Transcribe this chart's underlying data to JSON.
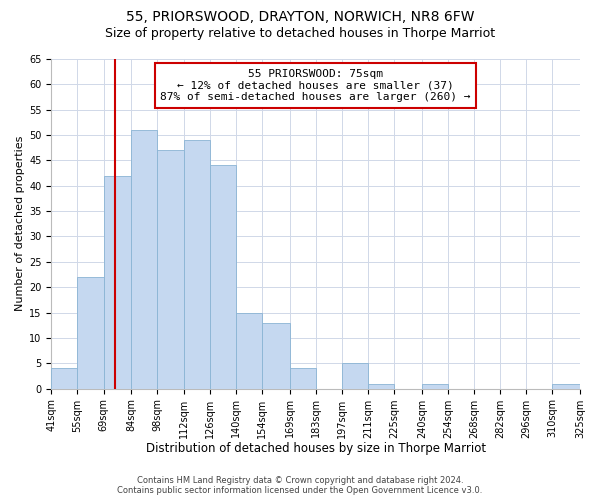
{
  "title": "55, PRIORSWOOD, DRAYTON, NORWICH, NR8 6FW",
  "subtitle": "Size of property relative to detached houses in Thorpe Marriot",
  "xlabel": "Distribution of detached houses by size in Thorpe Marriot",
  "ylabel": "Number of detached properties",
  "bar_edges": [
    41,
    55,
    69,
    84,
    98,
    112,
    126,
    140,
    154,
    169,
    183,
    197,
    211,
    225,
    240,
    254,
    268,
    282,
    296,
    310,
    325
  ],
  "bar_heights": [
    4,
    22,
    42,
    51,
    47,
    49,
    44,
    15,
    13,
    4,
    0,
    5,
    1,
    0,
    1,
    0,
    0,
    0,
    0,
    1
  ],
  "bar_color": "#c5d8f0",
  "bar_edge_color": "#8ab4d4",
  "vline_x": 75,
  "vline_color": "#cc0000",
  "annotation_text_line1": "55 PRIORSWOOD: 75sqm",
  "annotation_text_line2": "← 12% of detached houses are smaller (37)",
  "annotation_text_line3": "87% of semi-detached houses are larger (260) →",
  "annotation_box_color": "#ffffff",
  "annotation_box_edge_color": "#cc0000",
  "ylim": [
    0,
    65
  ],
  "yticks": [
    0,
    5,
    10,
    15,
    20,
    25,
    30,
    35,
    40,
    45,
    50,
    55,
    60,
    65
  ],
  "tick_labels": [
    "41sqm",
    "55sqm",
    "69sqm",
    "84sqm",
    "98sqm",
    "112sqm",
    "126sqm",
    "140sqm",
    "154sqm",
    "169sqm",
    "183sqm",
    "197sqm",
    "211sqm",
    "225sqm",
    "240sqm",
    "254sqm",
    "268sqm",
    "282sqm",
    "296sqm",
    "310sqm",
    "325sqm"
  ],
  "footer_line1": "Contains HM Land Registry data © Crown copyright and database right 2024.",
  "footer_line2": "Contains public sector information licensed under the Open Government Licence v3.0.",
  "bg_color": "#ffffff",
  "grid_color": "#d0d8e8",
  "title_fontsize": 10,
  "subtitle_fontsize": 9,
  "xlabel_fontsize": 8.5,
  "ylabel_fontsize": 8,
  "tick_fontsize": 7,
  "annotation_fontsize": 8,
  "footer_fontsize": 6
}
